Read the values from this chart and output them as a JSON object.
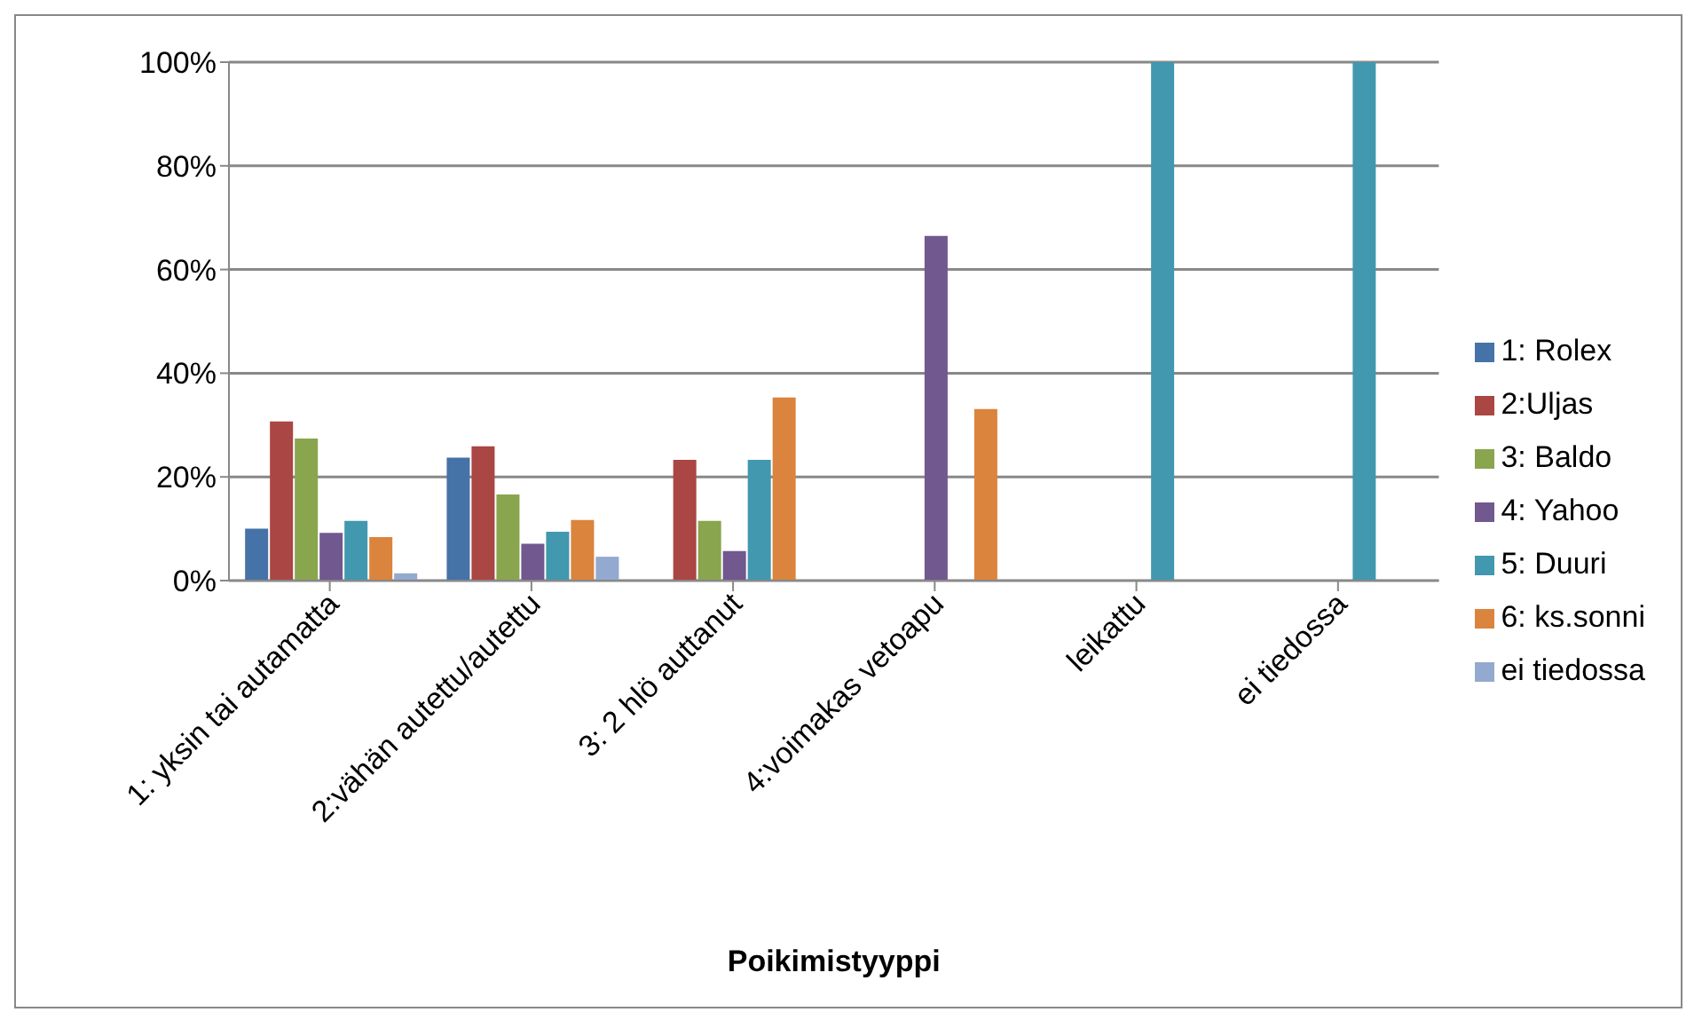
{
  "chart_data": {
    "type": "bar",
    "xlabel": "Poikimistyyppi",
    "categories": [
      "1: yksin tai autamatta",
      "2:vähän autettu/autettu",
      "3: 2 hlö auttanut",
      "4:voimakas vetoapu",
      "leikattu",
      "ei tiedossa"
    ],
    "series": [
      {
        "name": "1: Rolex",
        "color": "#4572a7",
        "values": [
          10,
          23.7,
          null,
          null,
          null,
          null
        ]
      },
      {
        "name": "2:Uljas",
        "color": "#aa4643",
        "values": [
          30.7,
          25.9,
          23.3,
          null,
          null,
          null
        ]
      },
      {
        "name": "3: Baldo",
        "color": "#89a54e",
        "values": [
          27.4,
          16.6,
          11.5,
          null,
          null,
          null
        ]
      },
      {
        "name": "4: Yahoo",
        "color": "#71588f",
        "values": [
          9.2,
          7.1,
          5.7,
          66.5,
          null,
          null
        ]
      },
      {
        "name": "5: Duuri",
        "color": "#4198af",
        "values": [
          11.5,
          9.4,
          23.3,
          null,
          100,
          100
        ]
      },
      {
        "name": "6: ks.sonni",
        "color": "#db843d",
        "values": [
          8.4,
          11.7,
          35.3,
          33.1,
          null,
          null
        ]
      },
      {
        "name": "ei tiedossa",
        "color": "#93a9cf",
        "values": [
          1.4,
          4.6,
          null,
          null,
          null,
          null
        ]
      }
    ],
    "ylim": [
      0,
      100
    ],
    "yticks": [
      {
        "value": 0,
        "label": "0%"
      },
      {
        "value": 20,
        "label": "20%"
      },
      {
        "value": 40,
        "label": "40%"
      },
      {
        "value": 60,
        "label": "60%"
      },
      {
        "value": 80,
        "label": "80%"
      },
      {
        "value": 100,
        "label": "100%"
      }
    ],
    "grid": "y",
    "legend": "right"
  }
}
